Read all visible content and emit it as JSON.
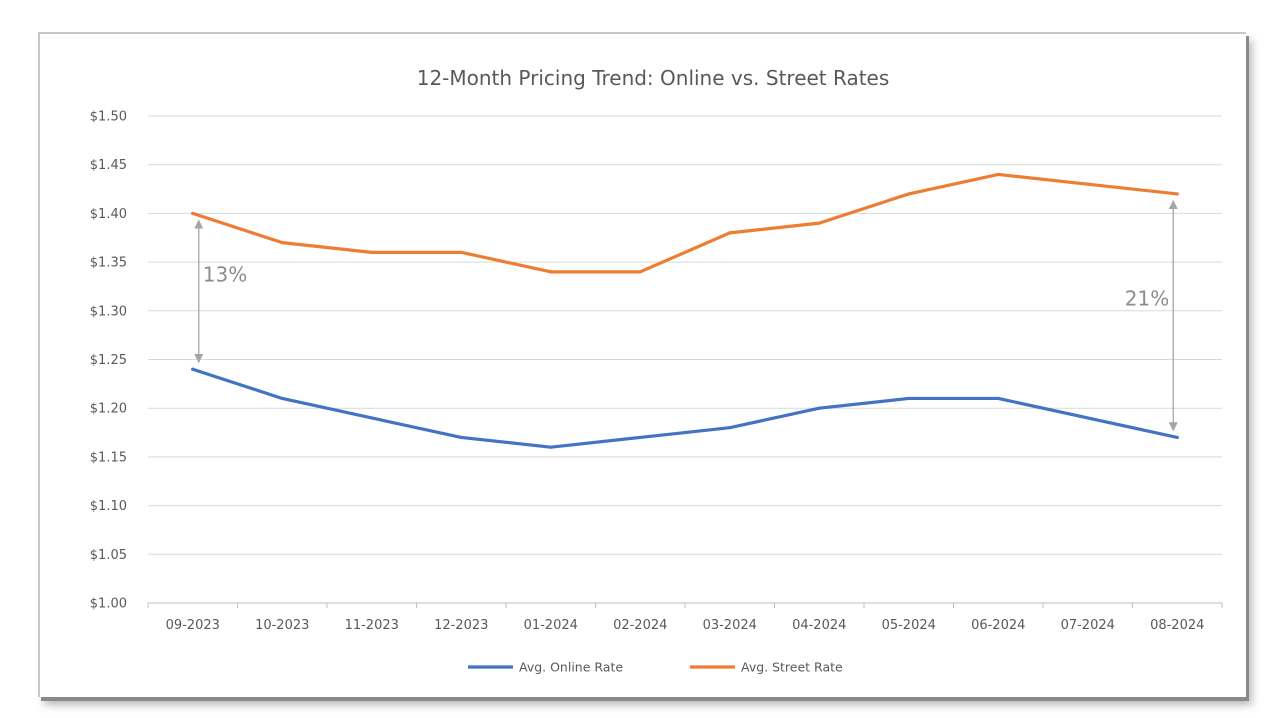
{
  "chart_data": {
    "type": "line",
    "title": "12-Month Pricing Trend: Online vs. Street Rates",
    "xlabel": "",
    "ylabel": "",
    "categories": [
      "09-2023",
      "10-2023",
      "11-2023",
      "12-2023",
      "01-2024",
      "02-2024",
      "03-2024",
      "04-2024",
      "05-2024",
      "06-2024",
      "07-2024",
      "08-2024"
    ],
    "y_ticks": [
      "$1.00",
      "$1.05",
      "$1.10",
      "$1.15",
      "$1.20",
      "$1.25",
      "$1.30",
      "$1.35",
      "$1.40",
      "$1.45",
      "$1.50"
    ],
    "ylim": [
      1.0,
      1.5
    ],
    "grid": true,
    "legend": "bottom",
    "series": [
      {
        "name": "Avg. Online Rate",
        "color": "#4472C4",
        "values": [
          1.24,
          1.21,
          1.19,
          1.17,
          1.16,
          1.17,
          1.18,
          1.2,
          1.21,
          1.21,
          1.19,
          1.17
        ]
      },
      {
        "name": "Avg. Street Rate",
        "color": "#ED7D31",
        "values": [
          1.4,
          1.37,
          1.36,
          1.36,
          1.34,
          1.34,
          1.38,
          1.39,
          1.42,
          1.44,
          1.43,
          1.42
        ]
      }
    ],
    "annotations": [
      {
        "text": "13%",
        "category": "09-2023",
        "from": 1.24,
        "to": 1.4
      },
      {
        "text": "21%",
        "category": "08-2024",
        "from": 1.17,
        "to": 1.42
      }
    ]
  }
}
